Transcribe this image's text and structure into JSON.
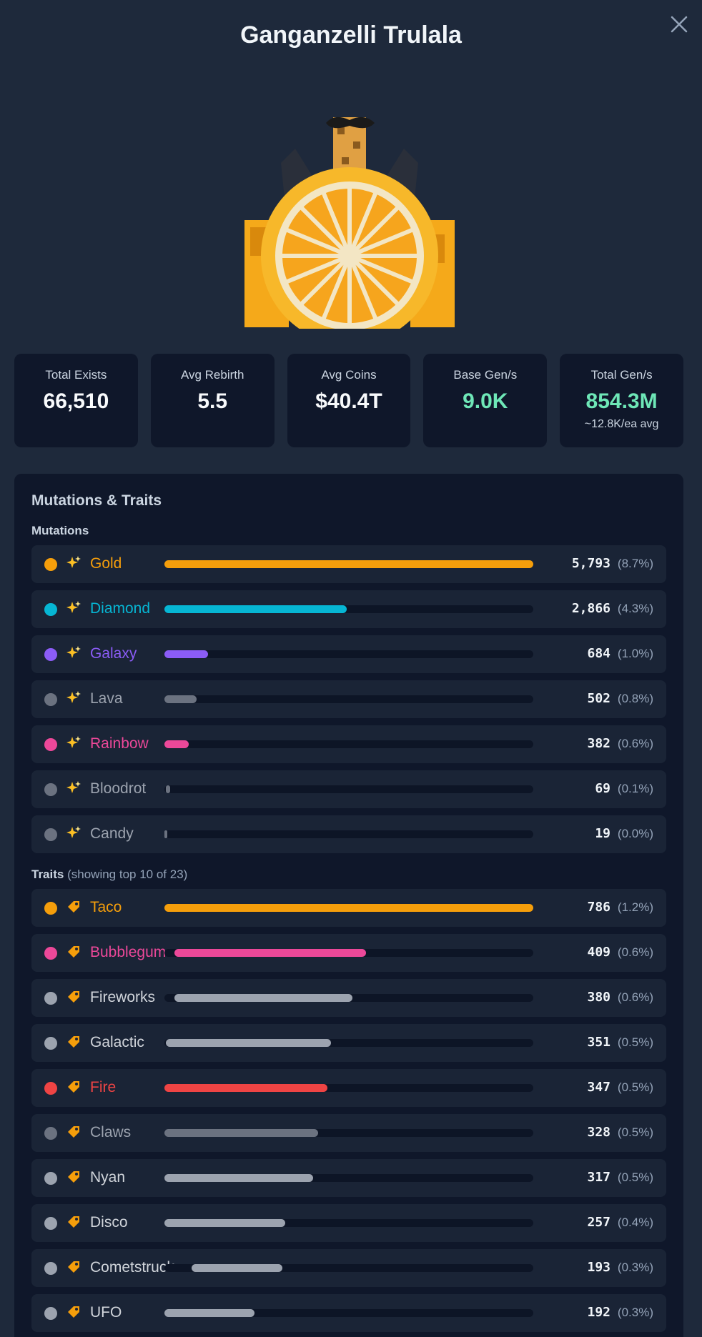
{
  "title": "Ganganzelli Trulala",
  "stats": [
    {
      "label": "Total Exists",
      "value": "66,510",
      "sub": "",
      "accent": false
    },
    {
      "label": "Avg Rebirth",
      "value": "5.5",
      "sub": "",
      "accent": false
    },
    {
      "label": "Avg Coins",
      "value": "$40.4T",
      "sub": "",
      "accent": false
    },
    {
      "label": "Base Gen/s",
      "value": "9.0K",
      "sub": "",
      "accent": true
    },
    {
      "label": "Total Gen/s",
      "value": "854.3M",
      "sub": "~12.8K/ea avg",
      "accent": true
    }
  ],
  "panel": {
    "title": "Mutations & Traits",
    "mutations_label": "Mutations",
    "traits_label": "Traits",
    "traits_note": "(showing top 10 of 23)"
  },
  "mutations": [
    {
      "name": "Gold",
      "count": "5,793",
      "pct": "(8.7%)",
      "fraction": 1.0,
      "color": "#f59e0b",
      "glyph": "sparkles-icon"
    },
    {
      "name": "Diamond",
      "count": "2,866",
      "pct": "(4.3%)",
      "fraction": 0.495,
      "color": "#06b6d4",
      "glyph": "sparkles-icon"
    },
    {
      "name": "Galaxy",
      "count": "684",
      "pct": "(1.0%)",
      "fraction": 0.118,
      "color": "#8b5cf6",
      "glyph": "sparkles-icon"
    },
    {
      "name": "Lava",
      "count": "502",
      "pct": "(0.8%)",
      "fraction": 0.087,
      "color": "#6b7280",
      "glyph": "sparkles-icon"
    },
    {
      "name": "Rainbow",
      "count": "382",
      "pct": "(0.6%)",
      "fraction": 0.066,
      "color": "#ec4899",
      "glyph": "sparkles-icon"
    },
    {
      "name": "Bloodrot",
      "count": "69",
      "pct": "(0.1%)",
      "fraction": 0.012,
      "color": "#6b7280",
      "glyph": "sparkles-icon"
    },
    {
      "name": "Candy",
      "count": "19",
      "pct": "(0.0%)",
      "fraction": 0.003,
      "color": "#6b7280",
      "glyph": "sparkles-icon"
    }
  ],
  "traits": [
    {
      "name": "Taco",
      "count": "786",
      "pct": "(1.2%)",
      "fraction": 1.0,
      "color": "#f59e0b",
      "glyph": "tag-icon"
    },
    {
      "name": "Bubblegum",
      "count": "409",
      "pct": "(0.6%)",
      "fraction": 0.52,
      "color": "#ec4899",
      "glyph": "tag-icon"
    },
    {
      "name": "Fireworks",
      "count": "380",
      "pct": "(0.6%)",
      "fraction": 0.483,
      "color": "#9ca3af",
      "glyph": "tag-icon"
    },
    {
      "name": "Galactic",
      "count": "351",
      "pct": "(0.5%)",
      "fraction": 0.447,
      "color": "#9ca3af",
      "glyph": "tag-icon"
    },
    {
      "name": "Fire",
      "count": "347",
      "pct": "(0.5%)",
      "fraction": 0.441,
      "color": "#ef4444",
      "glyph": "tag-icon"
    },
    {
      "name": "Claws",
      "count": "328",
      "pct": "(0.5%)",
      "fraction": 0.417,
      "color": "#6b7280",
      "glyph": "tag-icon"
    },
    {
      "name": "Nyan",
      "count": "317",
      "pct": "(0.5%)",
      "fraction": 0.403,
      "color": "#9ca3af",
      "glyph": "tag-icon"
    },
    {
      "name": "Disco",
      "count": "257",
      "pct": "(0.4%)",
      "fraction": 0.327,
      "color": "#9ca3af",
      "glyph": "tag-icon"
    },
    {
      "name": "Cometstruck",
      "count": "193",
      "pct": "(0.3%)",
      "fraction": 0.246,
      "color": "#9ca3af",
      "glyph": "tag-icon"
    },
    {
      "name": "UFO",
      "count": "192",
      "pct": "(0.3%)",
      "fraction": 0.244,
      "color": "#9ca3af",
      "glyph": "tag-icon"
    }
  ]
}
